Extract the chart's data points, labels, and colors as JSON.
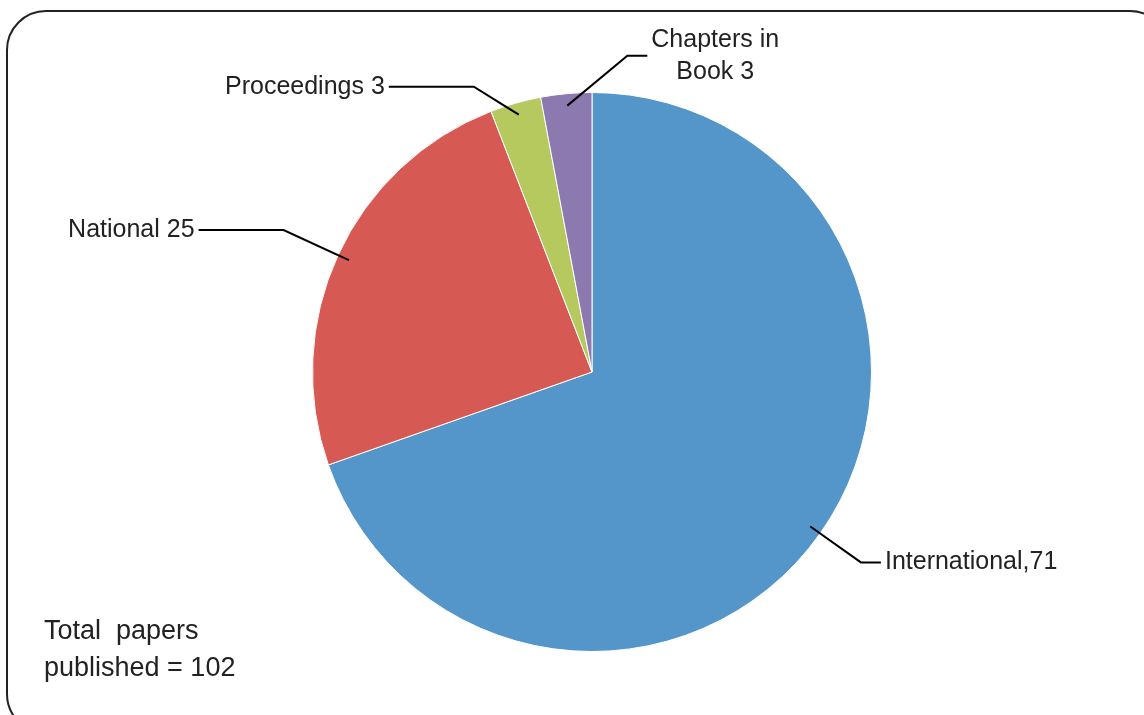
{
  "chart_data": {
    "type": "pie",
    "categories": [
      "International,71",
      "National 25",
      "Proceedings 3",
      "Chapters in Book 3"
    ],
    "values": [
      71,
      25,
      3,
      3
    ],
    "colors": [
      "#5596ca",
      "#d65a53",
      "#b5c95f",
      "#8b79b0"
    ],
    "legend": false,
    "annotations": [
      "Total  papers published = 102"
    ]
  }
}
